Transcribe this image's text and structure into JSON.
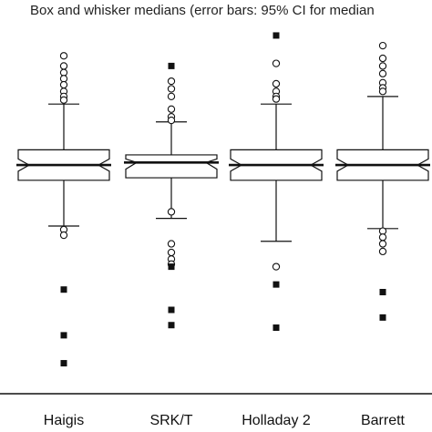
{
  "chart_data": {
    "type": "box",
    "title": "Box and whisker medians (error bars: 95% CI for median",
    "xlabel": "",
    "ylabel": "",
    "categories": [
      "Haigis",
      "SRK/T",
      "Holladay 2",
      "Barrett"
    ],
    "ylim": [
      -4.5,
      2.8
    ],
    "grid": false,
    "boxes": [
      {
        "name": "Haigis",
        "q1": -0.3,
        "median": 0.0,
        "q3": 0.3,
        "whisker_low": -1.2,
        "whisker_high": 1.2,
        "notch_low": -0.12,
        "notch_high": 0.12,
        "outliers_circle": [
          2.15,
          1.95,
          1.82,
          1.7,
          1.58,
          1.45,
          1.35,
          1.28,
          -1.27,
          -1.38
        ],
        "outliers_square": [
          -2.45,
          -3.35,
          -3.9
        ]
      },
      {
        "name": "SRK/T",
        "q1": -0.25,
        "median": 0.05,
        "q3": 0.2,
        "whisker_low": -1.05,
        "whisker_high": 0.85,
        "notch_low": -0.08,
        "notch_high": 0.12,
        "outliers_circle": [
          1.65,
          1.5,
          1.35,
          1.1,
          0.95,
          0.88,
          -0.92,
          -1.55,
          -1.72,
          -1.85,
          -1.95
        ],
        "outliers_square": [
          1.95,
          -2.0,
          -2.85,
          -3.15
        ]
      },
      {
        "name": "Holladay 2",
        "q1": -0.3,
        "median": 0.0,
        "q3": 0.3,
        "whisker_low": -1.5,
        "whisker_high": 1.2,
        "notch_low": -0.12,
        "notch_high": 0.12,
        "outliers_circle": [
          2.0,
          1.6,
          1.45,
          1.35,
          1.3,
          -2.0
        ],
        "outliers_square": [
          2.55,
          -2.35,
          -3.2
        ]
      },
      {
        "name": "Barrett",
        "q1": -0.3,
        "median": 0.0,
        "q3": 0.3,
        "whisker_low": -1.25,
        "whisker_high": 1.35,
        "notch_low": -0.12,
        "notch_high": 0.12,
        "outliers_circle": [
          2.35,
          2.1,
          1.95,
          1.8,
          1.62,
          1.52,
          1.45,
          -1.3,
          -1.42,
          -1.55,
          -1.7
        ],
        "outliers_square": [
          -2.5,
          -3.0
        ]
      }
    ]
  },
  "colors": {
    "line": "#111111",
    "fill": "#ffffff",
    "marker": "#111111"
  }
}
